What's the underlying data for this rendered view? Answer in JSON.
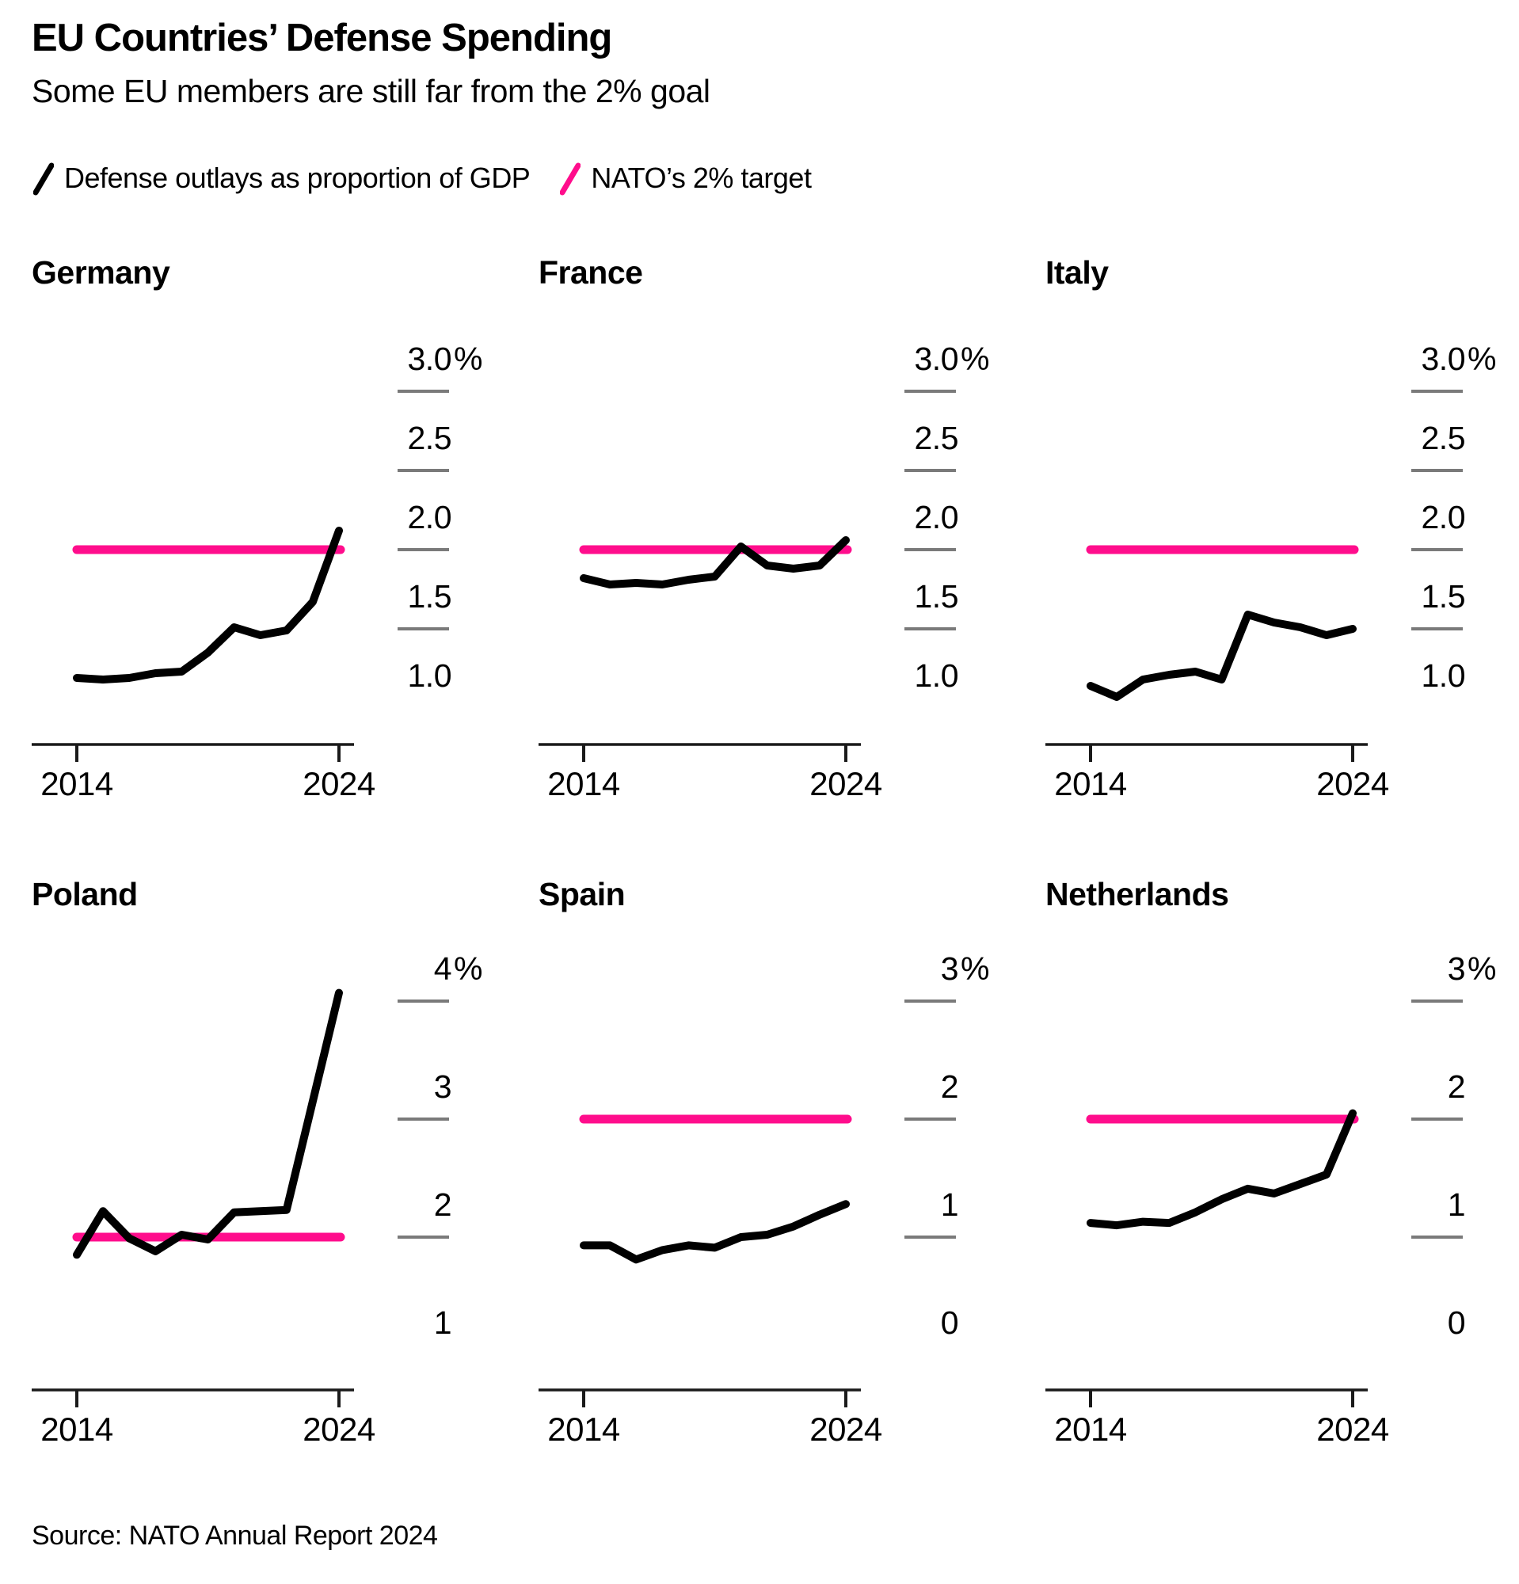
{
  "header": {
    "title": "EU Countries’ Defense Spending",
    "subtitle": "Some EU members are still far from the 2% goal"
  },
  "legend": {
    "series_label": "Defense outlays as proportion of GDP",
    "target_label": "NATO’s 2% target"
  },
  "source": "Source: NATO Annual Report 2024",
  "colors": {
    "series_line": "#000000",
    "target_line": "#ff0d8c",
    "tick_dash": "#7a7a7a",
    "axis_line": "#1a1a1a",
    "text": "#000000"
  },
  "chart_data": [
    {
      "type": "line",
      "title": "Germany",
      "x": [
        2014,
        2015,
        2016,
        2017,
        2018,
        2019,
        2020,
        2021,
        2022,
        2023,
        2024
      ],
      "values": [
        1.19,
        1.18,
        1.19,
        1.22,
        1.23,
        1.35,
        1.51,
        1.46,
        1.49,
        1.67,
        2.12
      ],
      "target_value": 2.0,
      "ytick_labels": [
        "3.0",
        "2.5",
        "2.0",
        "1.5",
        "1.0"
      ],
      "ytick_values": [
        3.0,
        2.5,
        2.0,
        1.5,
        1.0
      ],
      "ytick_unit_suffix": "%",
      "xtick_labels": [
        "2014",
        "2024"
      ],
      "xtick_values": [
        2014,
        2024
      ],
      "ylim": [
        0.78,
        3.0
      ],
      "grid": false,
      "legend_position": "top-of-page"
    },
    {
      "type": "line",
      "title": "France",
      "x": [
        2014,
        2015,
        2016,
        2017,
        2018,
        2019,
        2020,
        2021,
        2022,
        2023,
        2024
      ],
      "values": [
        1.82,
        1.78,
        1.79,
        1.78,
        1.81,
        1.83,
        2.02,
        1.9,
        1.88,
        1.9,
        2.06
      ],
      "target_value": 2.0,
      "ytick_labels": [
        "3.0",
        "2.5",
        "2.0",
        "1.5",
        "1.0"
      ],
      "ytick_values": [
        3.0,
        2.5,
        2.0,
        1.5,
        1.0
      ],
      "ytick_unit_suffix": "%",
      "xtick_labels": [
        "2014",
        "2024"
      ],
      "xtick_values": [
        2014,
        2024
      ],
      "ylim": [
        0.78,
        3.0
      ],
      "grid": false
    },
    {
      "type": "line",
      "title": "Italy",
      "x": [
        2014,
        2015,
        2016,
        2017,
        2018,
        2019,
        2020,
        2021,
        2022,
        2023,
        2024
      ],
      "values": [
        1.14,
        1.07,
        1.18,
        1.21,
        1.23,
        1.18,
        1.59,
        1.54,
        1.51,
        1.46,
        1.5
      ],
      "target_value": 2.0,
      "ytick_labels": [
        "3.0",
        "2.5",
        "2.0",
        "1.5",
        "1.0"
      ],
      "ytick_values": [
        3.0,
        2.5,
        2.0,
        1.5,
        1.0
      ],
      "ytick_unit_suffix": "%",
      "xtick_labels": [
        "2014",
        "2024"
      ],
      "xtick_values": [
        2014,
        2024
      ],
      "ylim": [
        0.78,
        3.0
      ],
      "grid": false
    },
    {
      "type": "line",
      "title": "Poland",
      "x": [
        2014,
        2015,
        2016,
        2017,
        2018,
        2019,
        2020,
        2021,
        2022,
        2023,
        2024
      ],
      "values": [
        1.85,
        2.22,
        1.99,
        1.88,
        2.02,
        1.98,
        2.21,
        2.22,
        2.23,
        3.15,
        4.07
      ],
      "target_value": 2.0,
      "ytick_labels": [
        "4",
        "3",
        "2",
        "1"
      ],
      "ytick_values": [
        4,
        3,
        2,
        1
      ],
      "ytick_unit_suffix": "%",
      "xtick_labels": [
        "2014",
        "2024"
      ],
      "xtick_values": [
        2014,
        2024
      ],
      "ylim": [
        0.7,
        4.3
      ],
      "grid": false
    },
    {
      "type": "line",
      "title": "Spain",
      "x": [
        2014,
        2015,
        2016,
        2017,
        2018,
        2019,
        2020,
        2021,
        2022,
        2023,
        2024
      ],
      "values": [
        0.93,
        0.93,
        0.81,
        0.89,
        0.93,
        0.91,
        1.0,
        1.02,
        1.09,
        1.19,
        1.28
      ],
      "target_value": 2.0,
      "ytick_labels": [
        "3",
        "2",
        "1",
        "0"
      ],
      "ytick_values": [
        3,
        2,
        1,
        0
      ],
      "ytick_unit_suffix": "%",
      "xtick_labels": [
        "2014",
        "2024"
      ],
      "xtick_values": [
        2014,
        2024
      ],
      "ylim": [
        -0.3,
        3.3
      ],
      "grid": false
    },
    {
      "type": "line",
      "title": "Netherlands",
      "x": [
        2014,
        2015,
        2016,
        2017,
        2018,
        2019,
        2020,
        2021,
        2022,
        2023,
        2024
      ],
      "values": [
        1.12,
        1.1,
        1.13,
        1.12,
        1.21,
        1.32,
        1.41,
        1.37,
        1.45,
        1.53,
        2.05
      ],
      "target_value": 2.0,
      "ytick_labels": [
        "3",
        "2",
        "1",
        "0"
      ],
      "ytick_values": [
        3,
        2,
        1,
        0
      ],
      "ytick_unit_suffix": "%",
      "xtick_labels": [
        "2014",
        "2024"
      ],
      "xtick_values": [
        2014,
        2024
      ],
      "ylim": [
        -0.3,
        3.3
      ],
      "grid": false
    }
  ]
}
